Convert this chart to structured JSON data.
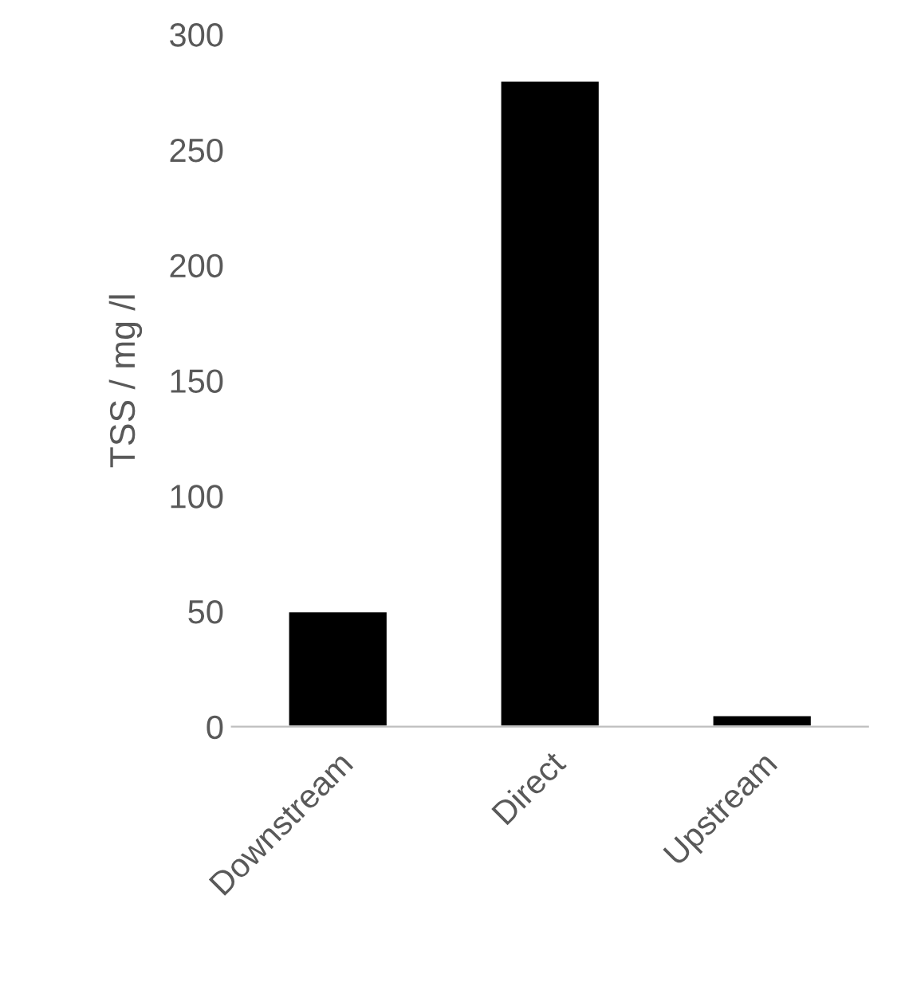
{
  "chart_data": {
    "type": "bar",
    "ylabel": "TSS / mg /l",
    "categories": [
      "Downstream",
      "Direct",
      "Upstream"
    ],
    "values": [
      50,
      280,
      5
    ],
    "color": "#000000",
    "ylim": [
      0,
      300
    ],
    "yticks": [
      0,
      50,
      100,
      150,
      200,
      250,
      300
    ],
    "grid": false
  }
}
